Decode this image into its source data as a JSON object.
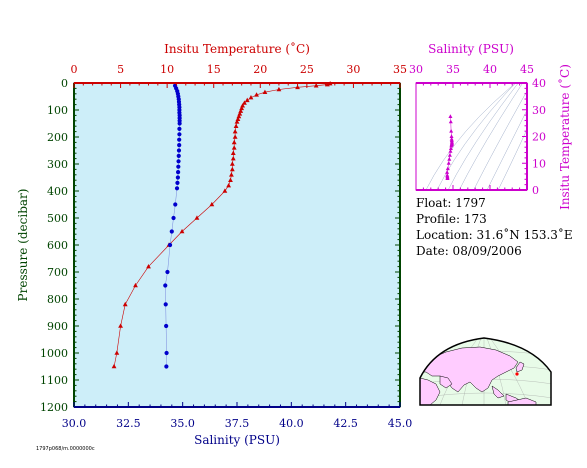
{
  "colors": {
    "temperature": "#cc0000",
    "salinity_axis": "#cc00cc",
    "salinity_points": "#0000cc",
    "pressure_axis": "#004400",
    "bottom_axis": "#000088",
    "plot_bg": "#cdeef9",
    "land": "#ffccff",
    "ocean": "#e8fbe8"
  },
  "chart_data": [
    {
      "type": "scatter",
      "title": "",
      "xlabel_top": "Insitu Temperature (˚C)",
      "xlabel_bottom": "Salinity (PSU)",
      "ylabel": "Pressure (decibar)",
      "temp_lim": [
        0,
        35
      ],
      "temp_ticks": [
        "0",
        "5",
        "10",
        "15",
        "20",
        "25",
        "30",
        "35"
      ],
      "sal_lim": [
        30,
        45
      ],
      "sal_ticks": [
        "30.0",
        "32.5",
        "35.0",
        "37.5",
        "40.0",
        "42.5",
        "45.0"
      ],
      "p_lim": [
        0,
        1200
      ],
      "p_ticks": [
        "0",
        "100",
        "200",
        "300",
        "400",
        "500",
        "600",
        "700",
        "800",
        "900",
        "1000",
        "1100",
        "1200"
      ],
      "temperature_profile": {
        "pressure": [
          2,
          6,
          10,
          16,
          24,
          34,
          44,
          54,
          64,
          74,
          84,
          94,
          104,
          114,
          124,
          134,
          144,
          160,
          180,
          200,
          220,
          240,
          260,
          280,
          300,
          320,
          340,
          360,
          380,
          400,
          450,
          500,
          550,
          600,
          680,
          750,
          820,
          900,
          1000,
          1050
        ],
        "temperature": [
          27.5,
          27.2,
          26.0,
          24.0,
          22.0,
          20.5,
          19.6,
          19.0,
          18.6,
          18.3,
          18.1,
          18.0,
          17.9,
          17.8,
          17.7,
          17.6,
          17.5,
          17.4,
          17.3,
          17.3,
          17.2,
          17.2,
          17.1,
          17.1,
          17.0,
          17.0,
          16.9,
          16.8,
          16.6,
          16.2,
          14.8,
          13.2,
          11.6,
          10.2,
          8.0,
          6.6,
          5.5,
          5.0,
          4.6,
          4.3
        ]
      },
      "salinity_profile": {
        "pressure": [
          10,
          20,
          30,
          40,
          50,
          60,
          70,
          80,
          90,
          100,
          110,
          120,
          130,
          140,
          150,
          170,
          190,
          210,
          230,
          250,
          270,
          290,
          310,
          330,
          350,
          370,
          390,
          450,
          500,
          550,
          600,
          700,
          750,
          820,
          900,
          1000,
          1050
        ],
        "salinity": [
          34.65,
          34.7,
          34.75,
          34.78,
          34.8,
          34.82,
          34.83,
          34.84,
          34.85,
          34.85,
          34.85,
          34.86,
          34.86,
          34.86,
          34.86,
          34.85,
          34.85,
          34.84,
          34.84,
          34.83,
          34.82,
          34.81,
          34.8,
          34.79,
          34.78,
          34.76,
          34.74,
          34.66,
          34.58,
          34.5,
          34.42,
          34.3,
          34.2,
          34.22,
          34.24,
          34.26,
          34.25
        ]
      }
    },
    {
      "type": "scatter",
      "title": "",
      "xlabel": "Salinity (PSU)",
      "ylabel": "Insitu Temperature (˚C)",
      "xlim": [
        30,
        45
      ],
      "ylim": [
        0,
        40
      ],
      "xticks": [
        "30",
        "35",
        "40",
        "45"
      ],
      "yticks": [
        "0",
        "10",
        "20",
        "30",
        "40"
      ],
      "points": [
        [
          34.65,
          27.5
        ],
        [
          34.7,
          25.5
        ],
        [
          34.75,
          22.0
        ],
        [
          34.8,
          20.0
        ],
        [
          34.82,
          19.0
        ],
        [
          34.84,
          18.5
        ],
        [
          34.85,
          18.0
        ],
        [
          34.86,
          17.6
        ],
        [
          34.85,
          17.3
        ],
        [
          34.84,
          17.1
        ],
        [
          34.82,
          16.9
        ],
        [
          34.78,
          16.5
        ],
        [
          34.72,
          15.5
        ],
        [
          34.66,
          14.5
        ],
        [
          34.58,
          13.0
        ],
        [
          34.5,
          11.5
        ],
        [
          34.42,
          10.0
        ],
        [
          34.3,
          8.0
        ],
        [
          34.2,
          6.6
        ],
        [
          34.22,
          5.5
        ],
        [
          34.24,
          5.0
        ],
        [
          34.26,
          4.6
        ],
        [
          34.25,
          4.3
        ]
      ]
    }
  ],
  "info": {
    "float": "Float:  1797",
    "profile": "Profile:  173",
    "location": "Location:  31.6˚N  153.3˚E",
    "date": "Date:  08/09/2006"
  },
  "map": {
    "float_lat": 31.6,
    "float_lon": 153.3
  },
  "footer_text": "1797p068/m.0000000c"
}
